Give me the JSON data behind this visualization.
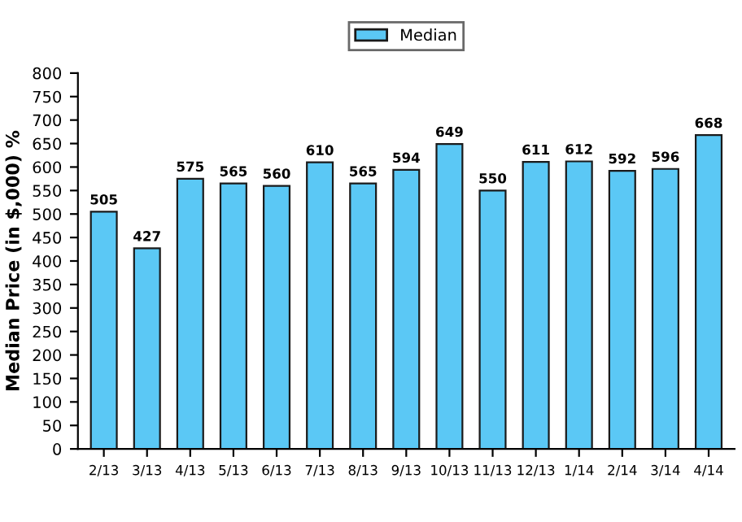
{
  "chart_data": {
    "type": "bar",
    "ylabel": "Median Price (in $,000) %",
    "categories": [
      "2/13",
      "3/13",
      "4/13",
      "5/13",
      "6/13",
      "7/13",
      "8/13",
      "9/13",
      "10/13",
      "11/13",
      "12/13",
      "1/14",
      "2/14",
      "3/14",
      "4/14"
    ],
    "series": [
      {
        "name": "Median",
        "color": "#5bc8f5",
        "values": [
          505,
          427,
          575,
          565,
          560,
          610,
          565,
          594,
          649,
          550,
          611,
          612,
          592,
          596,
          668
        ]
      }
    ],
    "ylim": [
      0,
      800
    ],
    "yticks": [
      0,
      50,
      100,
      150,
      200,
      250,
      300,
      350,
      400,
      450,
      500,
      550,
      600,
      650,
      700,
      750,
      800
    ],
    "data_labels": true,
    "legend": "top",
    "grid": false
  }
}
